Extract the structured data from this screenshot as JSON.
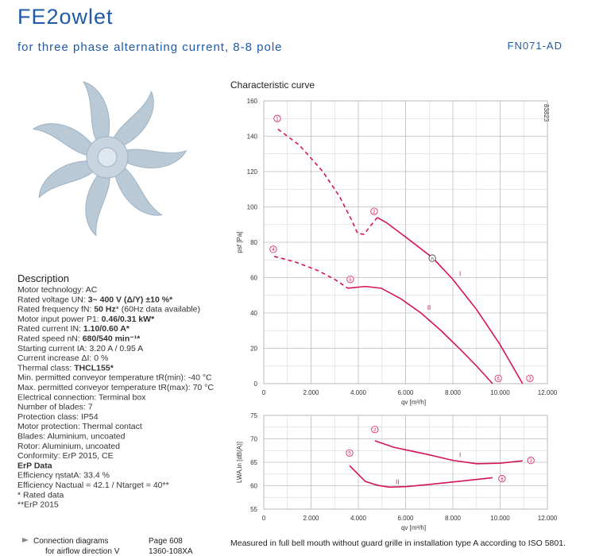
{
  "header": {
    "title": "FE2owlet",
    "subtitle": "for three phase alternating current, 8-8 pole",
    "code": "FN071-AD"
  },
  "description": {
    "heading": "Description",
    "lines": [
      {
        "label": "Motor technology: AC"
      },
      {
        "label": "Rated voltage UN: ",
        "value": "3~ 400 V (Δ/Y) ±10 %*"
      },
      {
        "label": "Rated frequency fN: ",
        "value": "50 Hz",
        "rest": "* (60Hz data available)"
      },
      {
        "label": "Motor input power P1: ",
        "value": "0.46/0.31 kW*"
      },
      {
        "label": "Rated current IN: ",
        "value": "1.10/0.60 A*"
      },
      {
        "label": "Rated speed nN: ",
        "value": "680/540 min⁻¹*"
      },
      {
        "label": "Starting current IA: 3.20 A / 0.95 A"
      },
      {
        "label": "Current increase ΔI: 0 %"
      },
      {
        "label": "Thermal class: ",
        "value": "THCL155*"
      },
      {
        "label": "Min. permitted conveyor temperature tR(min): -40 °C"
      },
      {
        "label": "Max. permitted conveyor temperature tR(max): 70 °C"
      },
      {
        "label": "Electrical connection: Terminal box"
      },
      {
        "label": "Number of blades: 7"
      },
      {
        "label": "Protection class: IP54"
      },
      {
        "label": "Motor protection: Thermal contact"
      },
      {
        "label": "Blades: Aluminium, uncoated"
      },
      {
        "label": "Rotor: Aluminium, uncoated"
      },
      {
        "label": "Conformity: ErP 2015, CE"
      },
      {
        "value": "ErP Data"
      },
      {
        "label": "Efficiency ηstatA: 33.4 %"
      },
      {
        "label": "Efficiency Nactual = 42.1 / Ntarget = 40**"
      },
      {
        "label": "* Rated data"
      },
      {
        "label": "**ErP 2015"
      }
    ]
  },
  "footer": {
    "link": "Connection diagrams",
    "page": "Page 608",
    "direction": "for airflow direction V",
    "drawing": "1360-108XA",
    "note": "Measured in full bell mouth without guard grille in installation type A according to ISO 5801."
  },
  "chart_data": [
    {
      "type": "line",
      "title": "Characteristic curve",
      "code": "83823",
      "ylabel": "psf [Pa]",
      "xlabel": "qv [m³/h]",
      "xlim": [
        0,
        12000
      ],
      "ylim": [
        0,
        160
      ],
      "grid": true,
      "xticks": [
        0,
        {
          "value": 2000,
          "label": "2.000"
        },
        {
          "value": 4000,
          "label": "4.000"
        },
        {
          "value": 6000,
          "label": "6.000"
        },
        {
          "value": 8000,
          "label": "8.000"
        },
        {
          "value": 10000,
          "label": "10.000"
        },
        {
          "value": 12000,
          "label": "12.000"
        }
      ],
      "yticks": [
        0,
        20,
        40,
        60,
        80,
        100,
        120,
        140,
        160
      ],
      "series": [
        {
          "name": "I",
          "color": "#d4145a",
          "segments": [
            {
              "style": "dashed",
              "x": [
                600,
                1500,
                2500,
                3200,
                3700,
                3970,
                4240,
                4500,
                4800
              ],
              "values": [
                144,
                135,
                120,
                106,
                93,
                85,
                84.5,
                89,
                94
              ]
            },
            {
              "style": "solid",
              "x": [
                4800,
                5200,
                6000,
                7160,
                8000,
                9000,
                10000,
                10950
              ],
              "values": [
                94,
                91,
                83,
                71,
                59,
                42,
                22,
                0
              ]
            }
          ]
        },
        {
          "name": "II",
          "color": "#d4145a",
          "segments": [
            {
              "style": "dashed",
              "x": [
                440,
                1300,
                2290,
                3000,
                3560
              ],
              "values": [
                72,
                69,
                64,
                59,
                54
              ]
            },
            {
              "style": "solid",
              "x": [
                3560,
                4300,
                4970,
                5800,
                6650,
                7500,
                8340,
                9000,
                9680
              ],
              "values": [
                54,
                55,
                54,
                48,
                40,
                30,
                19,
                10,
                0
              ]
            }
          ]
        }
      ],
      "points": [
        {
          "label": "1",
          "x": 570,
          "y": 150
        },
        {
          "label": "2",
          "x": 4670,
          "y": 97.5
        },
        {
          "label": "3",
          "x": 11260,
          "y": 3
        },
        {
          "label": "4",
          "x": 400,
          "y": 76
        },
        {
          "label": "5",
          "x": 3660,
          "y": 59
        },
        {
          "label": "6",
          "x": 9920,
          "y": 3
        },
        {
          "label": "n",
          "x": 7130,
          "y": 71
        }
      ]
    },
    {
      "type": "line",
      "ylabel": "LWA,in [dB(A)]",
      "xlabel": "qv [m³/h]",
      "xlim": [
        0,
        12000
      ],
      "ylim": [
        55,
        75
      ],
      "grid": true,
      "xticks": [
        0,
        {
          "value": 2000,
          "label": "2.000"
        },
        {
          "value": 4000,
          "label": "4.000"
        },
        {
          "value": 6000,
          "label": "6.000"
        },
        {
          "value": 8000,
          "label": "8.000"
        },
        {
          "value": 10000,
          "label": "10.000"
        },
        {
          "value": 12000,
          "label": "12.000"
        }
      ],
      "yticks": [
        55,
        60,
        65,
        70,
        75
      ],
      "series": [
        {
          "name": "I",
          "color": "#d4145a",
          "segments": [
            {
              "style": "solid",
              "x": [
                4700,
                5500,
                6990,
                8000,
                9000,
                10000,
                10950
              ],
              "values": [
                69.6,
                68.2,
                66.6,
                65.4,
                64.7,
                64.8,
                65.3
              ]
            }
          ]
        },
        {
          "name": "II",
          "color": "#d4145a",
          "segments": [
            {
              "style": "solid",
              "x": [
                3630,
                4000,
                4300,
                4800,
                5310,
                6000,
                6650,
                8000,
                9680
              ],
              "values": [
                64.3,
                62.4,
                60.9,
                60.1,
                59.7,
                59.8,
                60.1,
                60.8,
                61.7
              ]
            }
          ]
        }
      ],
      "points": [
        {
          "label": "2",
          "x": 4700,
          "y": 72
        },
        {
          "label": "3",
          "x": 11300,
          "y": 65.4
        },
        {
          "label": "5",
          "x": 3630,
          "y": 67
        },
        {
          "label": "6",
          "x": 10080,
          "y": 61.5
        }
      ]
    }
  ]
}
